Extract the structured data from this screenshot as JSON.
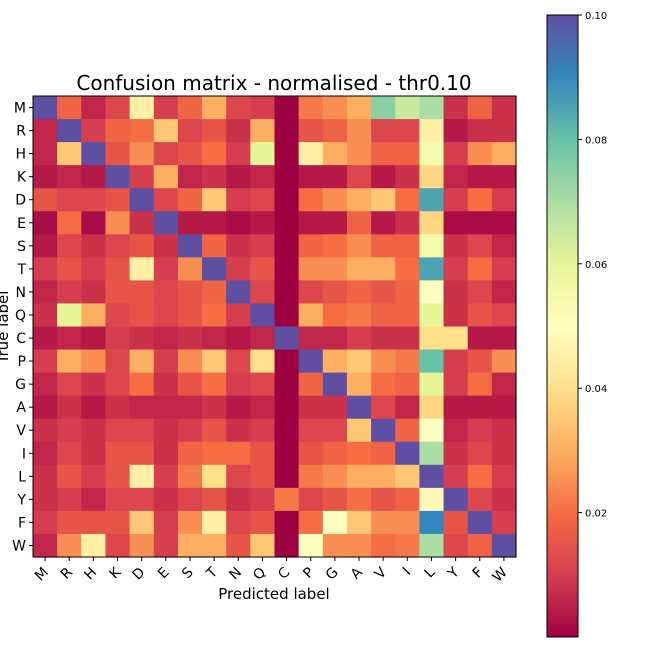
{
  "chart_data": {
    "type": "heatmap",
    "title": "Confusion matrix - normalised - thr0.10",
    "xlabel": "Predicted label",
    "ylabel": "True label",
    "row_labels": [
      "M",
      "R",
      "H",
      "K",
      "D",
      "E",
      "S",
      "T",
      "N",
      "Q",
      "C",
      "P",
      "G",
      "A",
      "V",
      "I",
      "L",
      "Y",
      "F",
      "W"
    ],
    "col_labels": [
      "M",
      "R",
      "H",
      "K",
      "D",
      "E",
      "S",
      "T",
      "N",
      "Q",
      "C",
      "P",
      "G",
      "A",
      "V",
      "I",
      "L",
      "Y",
      "F",
      "W"
    ],
    "colormap": "Spectral",
    "vmin": 0.0,
    "vmax": 0.1,
    "colorbar_ticks": [
      {
        "value": 0.02,
        "label": "0.02"
      },
      {
        "value": 0.04,
        "label": "0.04"
      },
      {
        "value": 0.06,
        "label": "0.06"
      },
      {
        "value": 0.08,
        "label": "0.08"
      },
      {
        "value": 0.1,
        "label": "0.10"
      }
    ],
    "values": [
      [
        0.1,
        0.018,
        0.006,
        0.012,
        0.045,
        0.01,
        0.018,
        0.03,
        0.012,
        0.01,
        0.0,
        0.022,
        0.025,
        0.03,
        0.075,
        0.065,
        0.07,
        0.008,
        0.018,
        0.008
      ],
      [
        0.006,
        0.1,
        0.01,
        0.018,
        0.02,
        0.035,
        0.012,
        0.015,
        0.008,
        0.03,
        0.0,
        0.015,
        0.018,
        0.025,
        0.012,
        0.012,
        0.045,
        0.004,
        0.008,
        0.008
      ],
      [
        0.006,
        0.035,
        0.1,
        0.015,
        0.025,
        0.012,
        0.015,
        0.02,
        0.01,
        0.06,
        0.0,
        0.045,
        0.03,
        0.025,
        0.018,
        0.018,
        0.055,
        0.01,
        0.025,
        0.03
      ],
      [
        0.004,
        0.006,
        0.004,
        0.1,
        0.01,
        0.03,
        0.006,
        0.008,
        0.004,
        0.006,
        0.0,
        0.004,
        0.004,
        0.012,
        0.004,
        0.008,
        0.038,
        0.006,
        0.004,
        0.004
      ],
      [
        0.015,
        0.012,
        0.012,
        0.015,
        0.1,
        0.012,
        0.018,
        0.035,
        0.01,
        0.012,
        0.0,
        0.02,
        0.025,
        0.03,
        0.035,
        0.02,
        0.085,
        0.01,
        0.02,
        0.01
      ],
      [
        0.002,
        0.02,
        0.002,
        0.025,
        0.008,
        0.1,
        0.004,
        0.004,
        0.002,
        0.004,
        0.0,
        0.004,
        0.004,
        0.018,
        0.004,
        0.008,
        0.038,
        0.002,
        0.002,
        0.002
      ],
      [
        0.004,
        0.012,
        0.008,
        0.012,
        0.015,
        0.008,
        0.1,
        0.018,
        0.008,
        0.01,
        0.0,
        0.018,
        0.02,
        0.025,
        0.018,
        0.018,
        0.055,
        0.008,
        0.012,
        0.006
      ],
      [
        0.01,
        0.015,
        0.01,
        0.015,
        0.045,
        0.01,
        0.025,
        0.1,
        0.01,
        0.015,
        0.0,
        0.025,
        0.025,
        0.03,
        0.03,
        0.02,
        0.085,
        0.01,
        0.02,
        0.01
      ],
      [
        0.006,
        0.01,
        0.008,
        0.015,
        0.015,
        0.012,
        0.015,
        0.018,
        0.1,
        0.012,
        0.0,
        0.012,
        0.015,
        0.018,
        0.015,
        0.018,
        0.05,
        0.008,
        0.012,
        0.006
      ],
      [
        0.008,
        0.06,
        0.03,
        0.012,
        0.015,
        0.012,
        0.015,
        0.02,
        0.01,
        0.1,
        0.0,
        0.03,
        0.02,
        0.022,
        0.018,
        0.018,
        0.06,
        0.008,
        0.015,
        0.012
      ],
      [
        0.004,
        0.006,
        0.004,
        0.01,
        0.008,
        0.006,
        0.008,
        0.006,
        0.004,
        0.006,
        0.1,
        0.006,
        0.006,
        0.01,
        0.008,
        0.008,
        0.04,
        0.04,
        0.004,
        0.004
      ],
      [
        0.01,
        0.03,
        0.025,
        0.012,
        0.03,
        0.01,
        0.025,
        0.035,
        0.012,
        0.04,
        0.0,
        0.1,
        0.03,
        0.035,
        0.025,
        0.022,
        0.08,
        0.01,
        0.015,
        0.025
      ],
      [
        0.006,
        0.012,
        0.008,
        0.012,
        0.02,
        0.008,
        0.015,
        0.02,
        0.01,
        0.012,
        0.0,
        0.018,
        0.1,
        0.03,
        0.02,
        0.018,
        0.06,
        0.01,
        0.02,
        0.006
      ],
      [
        0.004,
        0.008,
        0.004,
        0.008,
        0.006,
        0.006,
        0.006,
        0.008,
        0.004,
        0.006,
        0.0,
        0.008,
        0.008,
        0.1,
        0.012,
        0.006,
        0.038,
        0.004,
        0.004,
        0.004
      ],
      [
        0.008,
        0.01,
        0.008,
        0.012,
        0.012,
        0.008,
        0.01,
        0.015,
        0.008,
        0.01,
        0.0,
        0.012,
        0.012,
        0.035,
        0.1,
        0.018,
        0.05,
        0.006,
        0.01,
        0.008
      ],
      [
        0.006,
        0.012,
        0.008,
        0.015,
        0.015,
        0.008,
        0.018,
        0.02,
        0.02,
        0.015,
        0.0,
        0.015,
        0.018,
        0.02,
        0.018,
        0.1,
        0.07,
        0.008,
        0.012,
        0.008
      ],
      [
        0.008,
        0.015,
        0.01,
        0.015,
        0.045,
        0.01,
        0.022,
        0.04,
        0.012,
        0.015,
        0.0,
        0.022,
        0.025,
        0.03,
        0.03,
        0.035,
        0.1,
        0.01,
        0.02,
        0.01
      ],
      [
        0.008,
        0.01,
        0.006,
        0.012,
        0.012,
        0.008,
        0.012,
        0.015,
        0.008,
        0.01,
        0.022,
        0.012,
        0.015,
        0.02,
        0.015,
        0.018,
        0.048,
        0.1,
        0.012,
        0.008
      ],
      [
        0.01,
        0.015,
        0.015,
        0.015,
        0.035,
        0.01,
        0.025,
        0.045,
        0.012,
        0.015,
        0.0,
        0.02,
        0.05,
        0.035,
        0.025,
        0.025,
        0.09,
        0.015,
        0.1,
        0.01
      ],
      [
        0.006,
        0.025,
        0.045,
        0.012,
        0.025,
        0.01,
        0.03,
        0.03,
        0.015,
        0.035,
        0.0,
        0.05,
        0.025,
        0.025,
        0.02,
        0.022,
        0.07,
        0.012,
        0.018,
        0.1
      ]
    ]
  }
}
